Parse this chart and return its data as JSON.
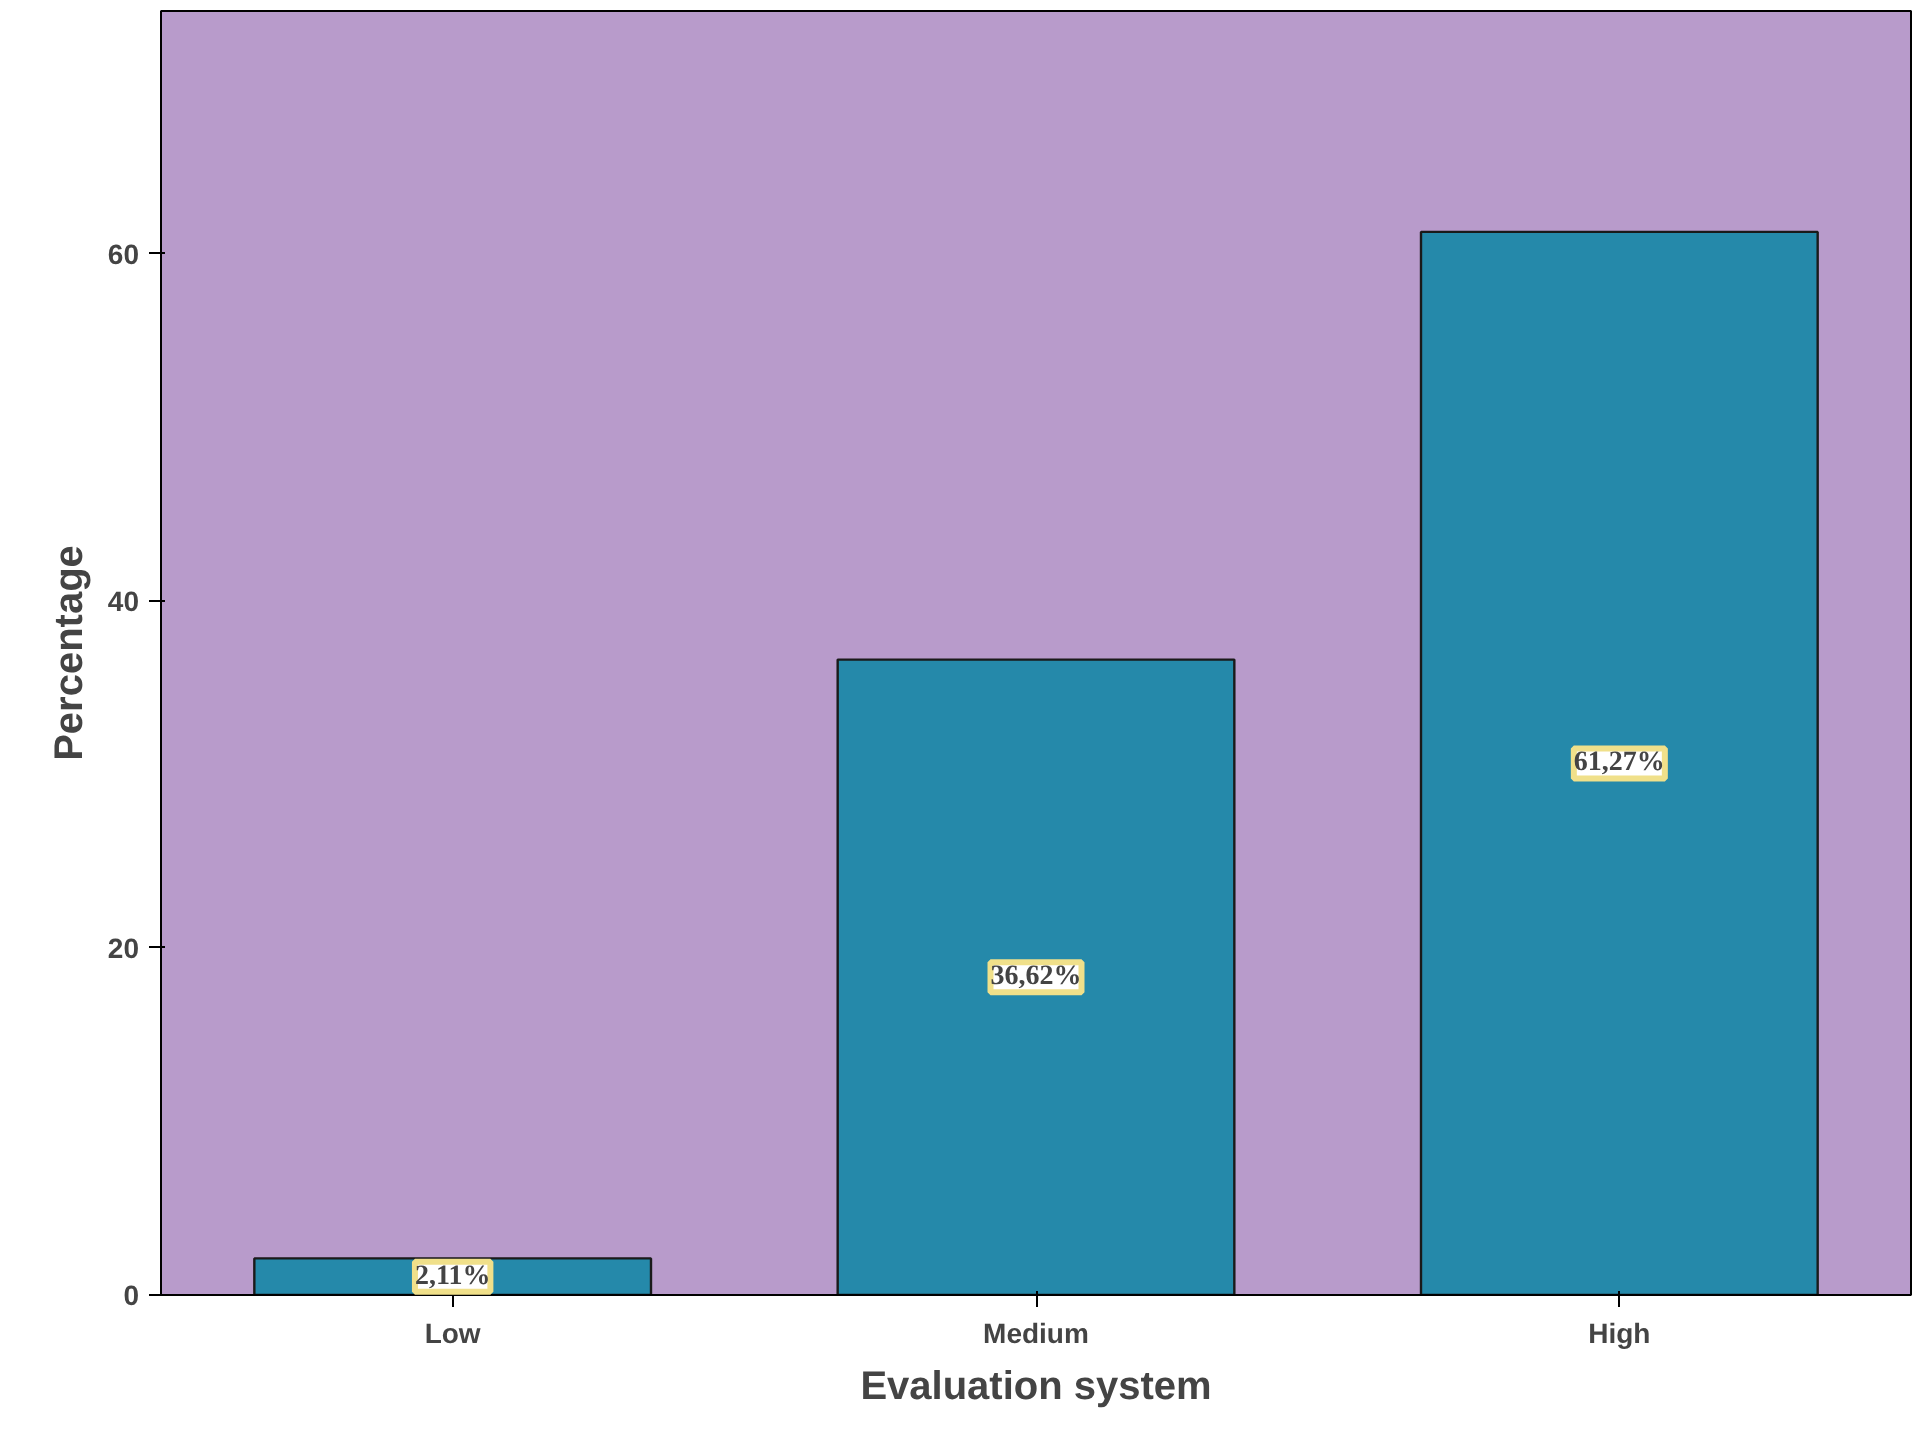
{
  "chart_data": {
    "type": "bar",
    "xlabel": "Evaluation system",
    "ylabel": "Percentage",
    "categories": [
      "Low",
      "Medium",
      "High"
    ],
    "values": [
      2.11,
      36.62,
      61.27
    ],
    "value_labels": [
      "2,11%",
      "36,62%",
      "61,27%"
    ],
    "color": "#2589aa",
    "ylim": [
      0,
      74
    ],
    "yticks": [
      0,
      20,
      40,
      60
    ],
    "grid": false
  }
}
